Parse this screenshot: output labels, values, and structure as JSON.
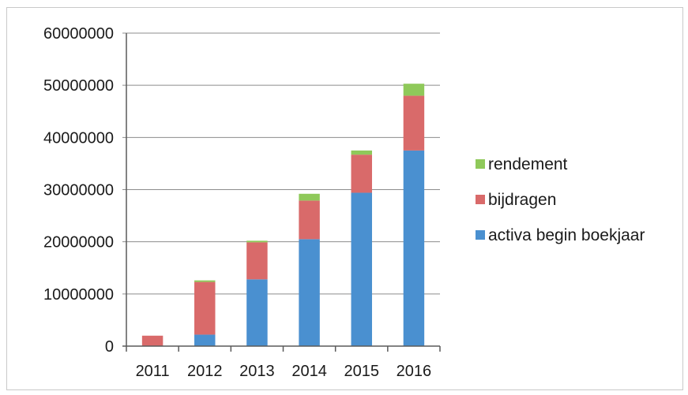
{
  "chart_data": {
    "type": "bar",
    "stacked": true,
    "categories": [
      "2011",
      "2012",
      "2013",
      "2014",
      "2015",
      "2016"
    ],
    "series": [
      {
        "name": "activa begin boekjaar",
        "color": "#4a90d0",
        "values": [
          0,
          2200000,
          12800000,
          20500000,
          29400000,
          37500000
        ]
      },
      {
        "name": "bijdragen",
        "color": "#d96a6a",
        "values": [
          2000000,
          10100000,
          7100000,
          7400000,
          7300000,
          10500000
        ]
      },
      {
        "name": "rendement",
        "color": "#8fc95a",
        "values": [
          0,
          300000,
          300000,
          1300000,
          800000,
          2300000
        ]
      }
    ],
    "ylim": [
      0,
      60000000
    ],
    "yticks": [
      "0",
      "10000000",
      "20000000",
      "30000000",
      "40000000",
      "50000000",
      "60000000"
    ],
    "grid": true,
    "legend": {
      "position": "right",
      "order": [
        "rendement",
        "bijdragen",
        "activa begin boekjaar"
      ]
    },
    "title": "",
    "xlabel": "",
    "ylabel": ""
  }
}
